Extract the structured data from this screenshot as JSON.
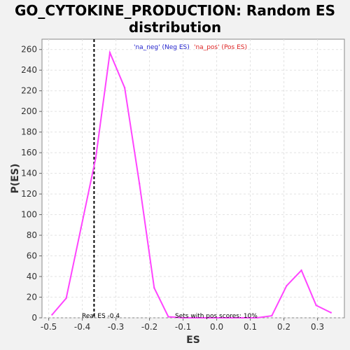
{
  "chart_data": {
    "type": "line",
    "title_line1": "GO_CYTOKINE_PRODUCTION: Random ES",
    "title_line2": "distribution",
    "xlabel": "ES",
    "ylabel": "P(ES)",
    "xlim": [
      -0.52,
      0.38
    ],
    "ylim": [
      0,
      270
    ],
    "xticks": [
      -0.5,
      -0.4,
      -0.3,
      -0.2,
      -0.1,
      0.0,
      0.1,
      0.2,
      0.3
    ],
    "xtick_labels": [
      "-0.5",
      "-0.4",
      "-0.3",
      "-0.2",
      "-0.1",
      "0.0",
      "0.1",
      "0.2",
      "0.3"
    ],
    "yticks": [
      0,
      20,
      40,
      60,
      80,
      100,
      120,
      140,
      160,
      180,
      200,
      220,
      240,
      260
    ],
    "ytick_labels": [
      "0",
      "20",
      "40",
      "60",
      "80",
      "100",
      "120",
      "140",
      "160",
      "180",
      "200",
      "220",
      "240",
      "260"
    ],
    "grid": true,
    "series": [
      {
        "color": "#ff44ff",
        "x": [
          -0.49,
          -0.448,
          -0.404,
          -0.36,
          -0.318,
          -0.274,
          -0.23,
          -0.186,
          -0.144,
          -0.1,
          -0.056,
          -0.012,
          0.032,
          0.076,
          0.12,
          0.164,
          0.208,
          0.252,
          0.296,
          0.34
        ],
        "y": [
          3,
          19,
          87,
          155,
          257,
          223,
          130,
          29,
          1,
          0,
          0,
          0,
          0,
          0,
          0,
          2,
          31,
          46,
          12,
          5
        ]
      }
    ],
    "real_es": {
      "x": -0.365,
      "label": "Real ES -0.4",
      "color": "#000000"
    },
    "legend": {
      "neg_text": "'na_neg' (Neg ES)",
      "neg_color": "#2222cc",
      "pos_text": "'na_pos' (Pos ES)",
      "pos_color": "#dd2222"
    },
    "pos_note": "Sets with pos scores: 10%"
  }
}
